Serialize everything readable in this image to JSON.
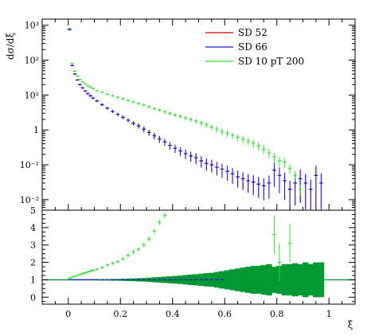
{
  "chart_data": [
    {
      "type": "scatter",
      "panel": "main",
      "title": "",
      "xlabel": "",
      "ylabel": "dσ/dξ",
      "yscale": "log",
      "xlim": [
        -0.1,
        1.1
      ],
      "ylim": [
        0.005,
        1500
      ],
      "y_ticks": [
        {
          "value": 0.01,
          "label": "10⁻²"
        },
        {
          "value": 0.1,
          "label": "10⁻¹"
        },
        {
          "value": 1,
          "label": "1"
        },
        {
          "value": 10,
          "label": "10¹"
        },
        {
          "value": 100,
          "label": "10²"
        },
        {
          "value": 1000,
          "label": "10³"
        }
      ],
      "grid": false,
      "legend_position": "top-center",
      "series": [
        {
          "name": "SD 52",
          "color": "#cc0000",
          "x": [
            0.005,
            0.015,
            0.025,
            0.035,
            0.045,
            0.055,
            0.065,
            0.075,
            0.085,
            0.095,
            0.11,
            0.13,
            0.15,
            0.17,
            0.19,
            0.21,
            0.23,
            0.25,
            0.27,
            0.29,
            0.31,
            0.33,
            0.35,
            0.37,
            0.39,
            0.41,
            0.43,
            0.45,
            0.47,
            0.49,
            0.51,
            0.53,
            0.55,
            0.57,
            0.59,
            0.61,
            0.63,
            0.65,
            0.67,
            0.69,
            0.71,
            0.73,
            0.75,
            0.77,
            0.79,
            0.81,
            0.83,
            0.85,
            0.87,
            0.89,
            0.91,
            0.93,
            0.95,
            0.97
          ],
          "y": [
            750,
            70,
            40,
            27,
            20,
            16,
            13,
            11,
            9.5,
            8.2,
            6.8,
            5.3,
            4.2,
            3.4,
            2.8,
            2.3,
            1.9,
            1.55,
            1.3,
            1.05,
            0.85,
            0.68,
            0.55,
            0.45,
            0.36,
            0.3,
            0.25,
            0.21,
            0.18,
            0.16,
            0.13,
            0.11,
            0.1,
            0.085,
            0.075,
            0.065,
            0.055,
            0.045,
            0.04,
            0.035,
            0.032,
            0.028,
            0.025,
            0.03,
            0.07,
            0.05,
            0.035,
            0.02,
            0.03,
            0.04,
            0.03,
            0.02,
            0.05,
            0.03
          ]
        },
        {
          "name": "SD 66",
          "color": "#1a1acc",
          "x": [
            0.005,
            0.015,
            0.025,
            0.035,
            0.045,
            0.055,
            0.065,
            0.075,
            0.085,
            0.095,
            0.11,
            0.13,
            0.15,
            0.17,
            0.19,
            0.21,
            0.23,
            0.25,
            0.27,
            0.29,
            0.31,
            0.33,
            0.35,
            0.37,
            0.39,
            0.41,
            0.43,
            0.45,
            0.47,
            0.49,
            0.51,
            0.53,
            0.55,
            0.57,
            0.59,
            0.61,
            0.63,
            0.65,
            0.67,
            0.69,
            0.71,
            0.73,
            0.75,
            0.77,
            0.79,
            0.81,
            0.83,
            0.85,
            0.87,
            0.89,
            0.91,
            0.93,
            0.95,
            0.97
          ],
          "y": [
            750,
            70,
            40,
            27,
            20,
            16,
            13,
            11,
            9.5,
            8.2,
            6.8,
            5.3,
            4.2,
            3.4,
            2.8,
            2.3,
            1.9,
            1.55,
            1.3,
            1.05,
            0.85,
            0.68,
            0.55,
            0.45,
            0.36,
            0.3,
            0.25,
            0.21,
            0.18,
            0.16,
            0.13,
            0.11,
            0.1,
            0.085,
            0.075,
            0.065,
            0.055,
            0.045,
            0.04,
            0.035,
            0.032,
            0.028,
            0.025,
            0.03,
            0.07,
            0.05,
            0.035,
            0.02,
            0.03,
            0.04,
            0.03,
            0.02,
            0.05,
            0.03
          ]
        },
        {
          "name": "SD 10 pT 200",
          "color": "#33dd33",
          "x": [
            0.005,
            0.015,
            0.025,
            0.035,
            0.045,
            0.055,
            0.065,
            0.075,
            0.085,
            0.095,
            0.11,
            0.13,
            0.15,
            0.17,
            0.19,
            0.21,
            0.23,
            0.25,
            0.27,
            0.29,
            0.31,
            0.33,
            0.35,
            0.37,
            0.39,
            0.41,
            0.43,
            0.45,
            0.47,
            0.49,
            0.51,
            0.53,
            0.55,
            0.57,
            0.59,
            0.61,
            0.63,
            0.65,
            0.67,
            0.69,
            0.71,
            0.73,
            0.75,
            0.77,
            0.79,
            0.81,
            0.83,
            0.85,
            0.87,
            0.89
          ],
          "y": [
            800,
            80,
            48,
            35,
            28,
            24,
            21,
            18.5,
            17,
            15.5,
            13.5,
            12,
            10.5,
            9.5,
            8.6,
            7.8,
            7,
            6.3,
            5.7,
            5.2,
            4.6,
            4.1,
            3.7,
            3.3,
            3,
            2.7,
            2.45,
            2.2,
            2,
            1.8,
            1.6,
            1.4,
            1.2,
            1.05,
            0.9,
            0.8,
            0.7,
            0.62,
            0.55,
            0.48,
            0.42,
            0.35,
            0.28,
            0.22,
            0.17,
            0.13,
            0.12,
            0.08,
            0.05,
            0.02
          ]
        }
      ]
    },
    {
      "type": "scatter",
      "panel": "ratio",
      "xlabel": "ξ",
      "ylabel": "",
      "xlim": [
        -0.1,
        1.1
      ],
      "ylim": [
        -0.4,
        5
      ],
      "x_ticks": [
        {
          "value": 0,
          "label": "0"
        },
        {
          "value": 0.2,
          "label": "0.2"
        },
        {
          "value": 0.4,
          "label": "0.4"
        },
        {
          "value": 0.6,
          "label": "0.6"
        },
        {
          "value": 0.8,
          "label": "0.8"
        },
        {
          "value": 1,
          "label": "1"
        }
      ],
      "y_ticks": [
        {
          "value": 0,
          "label": "0"
        },
        {
          "value": 1,
          "label": "1"
        },
        {
          "value": 2,
          "label": "2"
        },
        {
          "value": 3,
          "label": "3"
        },
        {
          "value": 4,
          "label": "4"
        },
        {
          "value": 5,
          "label": "5"
        }
      ],
      "reference_line": 1,
      "band_color": "#009933",
      "band": {
        "x": [
          0.005,
          0.015,
          0.025,
          0.035,
          0.045,
          0.055,
          0.065,
          0.075,
          0.085,
          0.095,
          0.11,
          0.13,
          0.15,
          0.17,
          0.19,
          0.21,
          0.23,
          0.25,
          0.27,
          0.29,
          0.31,
          0.33,
          0.35,
          0.37,
          0.39,
          0.41,
          0.43,
          0.45,
          0.47,
          0.49,
          0.51,
          0.53,
          0.55,
          0.57,
          0.59,
          0.61,
          0.63,
          0.65,
          0.67,
          0.69,
          0.71,
          0.73,
          0.75,
          0.77,
          0.79,
          0.81,
          0.83,
          0.85,
          0.87,
          0.89,
          0.91,
          0.93,
          0.95,
          0.97
        ],
        "half_width": [
          0.02,
          0.02,
          0.02,
          0.02,
          0.02,
          0.02,
          0.02,
          0.03,
          0.03,
          0.03,
          0.03,
          0.04,
          0.04,
          0.05,
          0.05,
          0.06,
          0.07,
          0.08,
          0.09,
          0.1,
          0.12,
          0.14,
          0.16,
          0.18,
          0.2,
          0.22,
          0.24,
          0.27,
          0.3,
          0.32,
          0.35,
          0.38,
          0.4,
          0.45,
          0.5,
          0.55,
          0.6,
          0.65,
          0.7,
          0.75,
          0.8,
          0.8,
          0.85,
          0.9,
          0.75,
          0.8,
          0.9,
          0.9,
          0.95,
          0.9,
          1.0,
          0.9,
          1.0,
          1.0
        ]
      },
      "series": [
        {
          "name": "SD 66",
          "color": "#1a1acc",
          "x": [
            0.005,
            0.015,
            0.025,
            0.035,
            0.045,
            0.055,
            0.065,
            0.075,
            0.085,
            0.095,
            0.11,
            0.13,
            0.15,
            0.17,
            0.19,
            0.21,
            0.23,
            0.25,
            0.27,
            0.29,
            0.31,
            0.33,
            0.35,
            0.37,
            0.39,
            0.41,
            0.43,
            0.45,
            0.47,
            0.49,
            0.51,
            0.53,
            0.55,
            0.57,
            0.59
          ],
          "y": [
            1.0,
            1.0,
            1.0,
            1.0,
            1.0,
            1.0,
            1.0,
            1.0,
            1.0,
            1.0,
            1.0,
            1.0,
            1.0,
            1.0,
            1.0,
            1.0,
            1.0,
            1.0,
            1.0,
            1.0,
            1.0,
            1.0,
            1.0,
            1.0,
            1.0,
            1.0,
            1.0,
            1.0,
            1.0,
            1.0,
            1.0,
            1.0,
            1.0,
            1.0,
            1.0
          ]
        },
        {
          "name": "SD 10 pT 200",
          "color": "#33dd33",
          "x": [
            0.005,
            0.015,
            0.025,
            0.035,
            0.045,
            0.055,
            0.065,
            0.075,
            0.085,
            0.095,
            0.11,
            0.13,
            0.15,
            0.17,
            0.19,
            0.21,
            0.23,
            0.25,
            0.27,
            0.29,
            0.31,
            0.33,
            0.35,
            0.37,
            0.79,
            0.81,
            0.85
          ],
          "y": [
            1.1,
            1.15,
            1.2,
            1.25,
            1.3,
            1.35,
            1.4,
            1.45,
            1.5,
            1.55,
            1.6,
            1.7,
            1.85,
            1.95,
            2.05,
            2.2,
            2.4,
            2.6,
            2.75,
            3.0,
            3.35,
            3.8,
            4.3,
            4.7,
            3.6,
            2.0,
            3.1
          ]
        }
      ]
    }
  ]
}
